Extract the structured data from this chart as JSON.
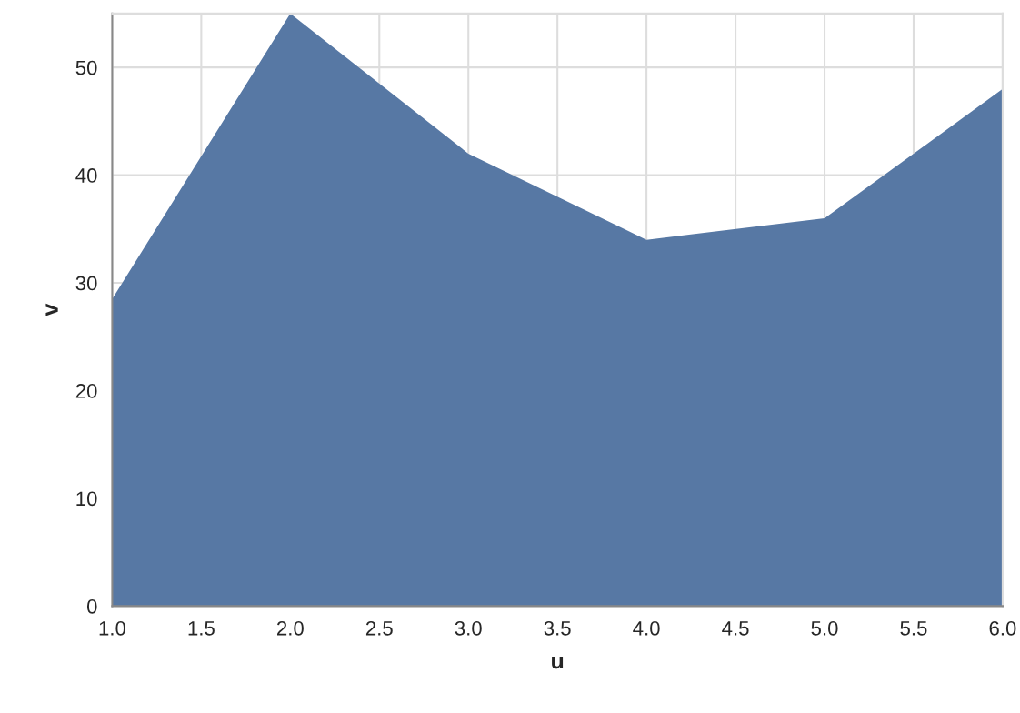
{
  "chart_data": {
    "type": "area",
    "xlabel": "u",
    "ylabel": "v",
    "x": [
      1,
      2,
      3,
      4,
      5,
      6
    ],
    "series": [
      {
        "color": "#5778a4",
        "values": [
          28.5,
          55,
          42,
          34,
          36,
          48
        ]
      }
    ],
    "xlim": [
      1,
      6
    ],
    "ylim": [
      0,
      55
    ],
    "xticks": [
      {
        "value": 1,
        "label": "1.0"
      },
      {
        "value": 1.5,
        "label": "1.5"
      },
      {
        "value": 2,
        "label": "2.0"
      },
      {
        "value": 2.5,
        "label": "2.5"
      },
      {
        "value": 3,
        "label": "3.0"
      },
      {
        "value": 3.5,
        "label": "3.5"
      },
      {
        "value": 4,
        "label": "4.0"
      },
      {
        "value": 4.5,
        "label": "4.5"
      },
      {
        "value": 5,
        "label": "5.0"
      },
      {
        "value": 5.5,
        "label": "5.5"
      },
      {
        "value": 6,
        "label": "6.0"
      }
    ],
    "yticks": [
      0,
      10,
      20,
      30,
      40,
      50
    ],
    "grid": true
  }
}
